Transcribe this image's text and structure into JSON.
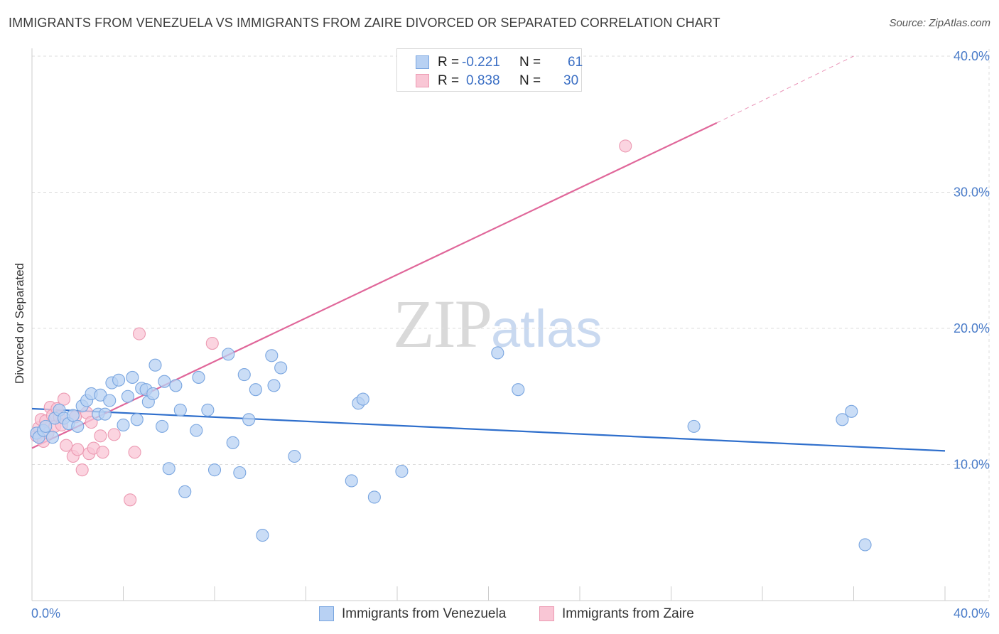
{
  "title": "IMMIGRANTS FROM VENEZUELA VS IMMIGRANTS FROM ZAIRE DIVORCED OR SEPARATED CORRELATION CHART",
  "source": "Source: ZipAtlas.com",
  "watermark": {
    "zip": "ZIP",
    "atlas": "atlas"
  },
  "legend": {
    "r_label": "R =",
    "n_label": "N =",
    "series": [
      {
        "name": "Immigrants from Venezuela",
        "r": "-0.221",
        "n": "61",
        "fill": "#b8d1f3",
        "stroke": "#7aa6e0"
      },
      {
        "name": "Immigrants from Zaire",
        "r": "0.838",
        "n": "30",
        "fill": "#f9c6d5",
        "stroke": "#ec9ab2"
      }
    ]
  },
  "colors": {
    "blue_line": "#2f6fcc",
    "pink_line": "#e0679a",
    "grid": "#dddddd",
    "axis": "#cccccc"
  },
  "chart_data": {
    "type": "scatter",
    "title": "IMMIGRANTS FROM VENEZUELA VS IMMIGRANTS FROM ZAIRE DIVORCED OR SEPARATED CORRELATION CHART",
    "xlabel": "",
    "ylabel": "Divorced or Separated",
    "xlim": [
      0,
      40
    ],
    "ylim": [
      0,
      40
    ],
    "x_tick_labels": [
      {
        "value": 0,
        "label": "0.0%"
      },
      {
        "value": 40,
        "label": "40.0%"
      }
    ],
    "y_tick_labels": [
      {
        "value": 10,
        "label": "10.0%"
      },
      {
        "value": 20,
        "label": "20.0%"
      },
      {
        "value": 30,
        "label": "30.0%"
      },
      {
        "value": 40,
        "label": "40.0%"
      }
    ],
    "series": [
      {
        "name": "Immigrants from Venezuela",
        "r": -0.221,
        "n": 61,
        "trend": {
          "x0": 0,
          "y0": 14.1,
          "x1": 40,
          "y1": 11.0
        },
        "points": [
          [
            0.2,
            12.3
          ],
          [
            0.3,
            12.0
          ],
          [
            0.5,
            12.5
          ],
          [
            0.6,
            12.8
          ],
          [
            0.9,
            12.0
          ],
          [
            1.0,
            13.4
          ],
          [
            1.2,
            14.0
          ],
          [
            1.4,
            13.4
          ],
          [
            1.6,
            13.0
          ],
          [
            1.8,
            13.6
          ],
          [
            2.0,
            12.8
          ],
          [
            2.2,
            14.3
          ],
          [
            2.4,
            14.7
          ],
          [
            2.6,
            15.2
          ],
          [
            2.9,
            13.7
          ],
          [
            3.0,
            15.1
          ],
          [
            3.2,
            13.7
          ],
          [
            3.4,
            14.7
          ],
          [
            3.5,
            16.0
          ],
          [
            3.8,
            16.2
          ],
          [
            4.0,
            12.9
          ],
          [
            4.2,
            15.0
          ],
          [
            4.4,
            16.4
          ],
          [
            4.6,
            13.3
          ],
          [
            4.8,
            15.6
          ],
          [
            5.0,
            15.5
          ],
          [
            5.1,
            14.6
          ],
          [
            5.3,
            15.2
          ],
          [
            5.4,
            17.3
          ],
          [
            5.7,
            12.8
          ],
          [
            5.8,
            16.1
          ],
          [
            6.0,
            9.7
          ],
          [
            6.3,
            15.8
          ],
          [
            6.5,
            14.0
          ],
          [
            6.7,
            8.0
          ],
          [
            7.2,
            12.5
          ],
          [
            7.3,
            16.4
          ],
          [
            7.7,
            14.0
          ],
          [
            8.0,
            9.6
          ],
          [
            8.6,
            18.1
          ],
          [
            8.8,
            11.6
          ],
          [
            9.1,
            9.4
          ],
          [
            9.3,
            16.6
          ],
          [
            9.5,
            13.3
          ],
          [
            9.8,
            15.5
          ],
          [
            10.1,
            4.8
          ],
          [
            10.5,
            18.0
          ],
          [
            10.6,
            15.8
          ],
          [
            10.9,
            17.1
          ],
          [
            11.5,
            10.6
          ],
          [
            14.0,
            8.8
          ],
          [
            14.3,
            14.5
          ],
          [
            14.5,
            14.8
          ],
          [
            15.0,
            7.6
          ],
          [
            16.2,
            9.5
          ],
          [
            20.4,
            18.2
          ],
          [
            21.3,
            15.5
          ],
          [
            29.0,
            12.8
          ],
          [
            35.5,
            13.3
          ],
          [
            35.9,
            13.9
          ],
          [
            36.5,
            4.1
          ]
        ]
      },
      {
        "name": "Immigrants from Zaire",
        "r": 0.838,
        "n": 30,
        "trend": {
          "x0": 0,
          "y0": 11.2,
          "x1": 30,
          "y1": 35.1
        },
        "trend_extension": {
          "x0": 30,
          "y0": 35.1,
          "x1": 36,
          "y1": 40.0
        },
        "points": [
          [
            0.2,
            12.1
          ],
          [
            0.3,
            12.7
          ],
          [
            0.4,
            13.3
          ],
          [
            0.5,
            11.7
          ],
          [
            0.6,
            13.2
          ],
          [
            0.7,
            12.3
          ],
          [
            0.8,
            14.2
          ],
          [
            0.9,
            13.6
          ],
          [
            1.0,
            12.8
          ],
          [
            1.1,
            14.1
          ],
          [
            1.2,
            13.5
          ],
          [
            1.3,
            12.9
          ],
          [
            1.4,
            14.8
          ],
          [
            1.5,
            11.4
          ],
          [
            1.8,
            10.6
          ],
          [
            1.9,
            13.5
          ],
          [
            2.0,
            11.1
          ],
          [
            2.2,
            9.6
          ],
          [
            2.4,
            13.8
          ],
          [
            2.5,
            10.8
          ],
          [
            2.7,
            11.2
          ],
          [
            2.6,
            13.1
          ],
          [
            3.0,
            12.1
          ],
          [
            3.1,
            10.9
          ],
          [
            3.6,
            12.2
          ],
          [
            4.3,
            7.4
          ],
          [
            4.5,
            10.9
          ],
          [
            4.7,
            19.6
          ],
          [
            7.9,
            18.9
          ],
          [
            26.0,
            33.4
          ]
        ]
      }
    ]
  }
}
